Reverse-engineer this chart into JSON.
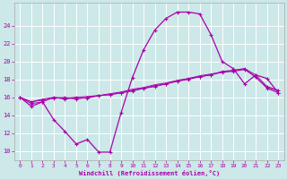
{
  "xlabel": "Windchill (Refroidissement éolien,°C)",
  "background_color": "#cce8e8",
  "grid_color": "#ffffff",
  "line_color": "#aa00aa",
  "xlim": [
    -0.5,
    23.5
  ],
  "ylim": [
    9.0,
    26.5
  ],
  "yticks": [
    10,
    12,
    14,
    16,
    18,
    20,
    22,
    24
  ],
  "xticks": [
    0,
    1,
    2,
    3,
    4,
    5,
    6,
    7,
    8,
    9,
    10,
    11,
    12,
    13,
    14,
    15,
    16,
    17,
    18,
    19,
    20,
    21,
    22,
    23
  ],
  "line1_y": [
    16.0,
    15.0,
    15.5,
    13.5,
    12.2,
    10.8,
    11.3,
    9.9,
    9.9,
    14.3,
    18.2,
    21.3,
    23.5,
    24.8,
    25.5,
    25.5,
    25.3,
    23.0,
    20.0,
    19.2,
    17.5,
    18.5,
    18.1,
    16.5
  ],
  "line2_y": [
    16.0,
    15.3,
    15.5,
    16.0,
    15.8,
    16.0,
    15.9,
    16.2,
    16.3,
    16.5,
    16.7,
    17.0,
    17.2,
    17.5,
    17.8,
    18.1,
    18.3,
    18.5,
    18.9,
    19.0,
    19.2,
    18.5,
    17.2,
    16.8
  ],
  "line3_y": [
    16.0,
    15.5,
    15.7,
    15.9,
    16.0,
    15.8,
    16.0,
    16.2,
    16.3,
    16.5,
    16.8,
    17.0,
    17.3,
    17.5,
    17.8,
    18.0,
    18.3,
    18.5,
    18.8,
    18.9,
    19.1,
    18.3,
    17.0,
    16.5
  ],
  "line4_y": [
    16.0,
    15.5,
    15.8,
    16.0,
    15.9,
    16.0,
    16.1,
    16.2,
    16.4,
    16.6,
    16.9,
    17.1,
    17.4,
    17.6,
    17.9,
    18.1,
    18.4,
    18.6,
    18.8,
    19.0,
    19.2,
    18.2,
    17.1,
    16.7
  ]
}
